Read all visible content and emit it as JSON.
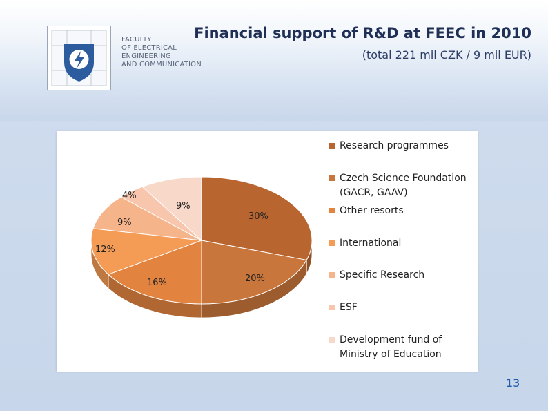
{
  "header": {
    "title": "Financial support of R&D at FEEC in 2010",
    "subtitle": "(total 221 mil CZK / 9 mil EUR)",
    "faculty_lines": [
      "FACULTY",
      "OF ELECTRICAL",
      "ENGINEERING",
      "AND COMMUNICATION"
    ]
  },
  "icons": {
    "logo": "faculty-logo-icon"
  },
  "colors": {
    "title": "#1f2f55",
    "page_number": "#1f5da8"
  },
  "chart_data": {
    "type": "pie",
    "title": "",
    "legend_position": "right",
    "slices": [
      {
        "label": "Research programmes",
        "value": 30,
        "color": "#b8652f"
      },
      {
        "label": "Czech Science Foundation (GACR, GAAV)",
        "value": 20,
        "color": "#c8763b"
      },
      {
        "label": "Other resorts",
        "value": 16,
        "color": "#e2843f"
      },
      {
        "label": "International",
        "value": 12,
        "color": "#f49b55"
      },
      {
        "label": "Specific Research",
        "value": 9,
        "color": "#f6b48b"
      },
      {
        "label": "ESF",
        "value": 4,
        "color": "#f8c6ac"
      },
      {
        "label": "Development fund of Ministry of Education",
        "value": 9,
        "color": "#f8d9c9"
      }
    ],
    "data_labels": [
      "30%",
      "20%",
      "16%",
      "12%",
      "9%",
      "4%",
      "9%"
    ],
    "legend_lines": [
      [
        "Research programmes"
      ],
      [
        "Czech Science Foundation",
        "(GACR, GAAV)"
      ],
      [
        "Other resorts"
      ],
      [
        "International"
      ],
      [
        "Specific Research"
      ],
      [
        "ESF"
      ],
      [
        "Development fund of",
        "Ministry of Education"
      ]
    ]
  },
  "footer": {
    "page_number": "13"
  }
}
